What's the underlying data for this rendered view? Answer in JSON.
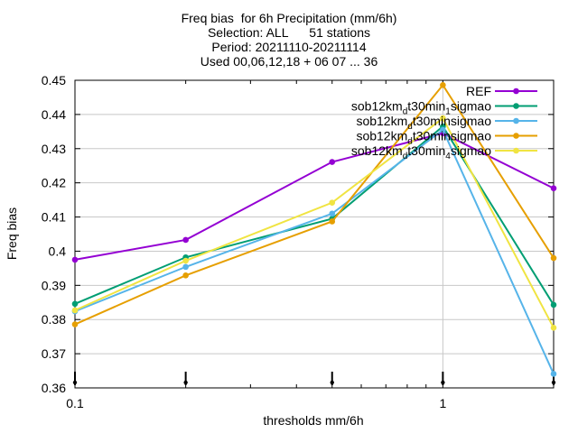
{
  "chart_data": {
    "type": "line",
    "title_lines": [
      "Freq bias  for 6h Precipitation (mm/6h)",
      "Selection: ALL      51 stations",
      "Period: 20211110-20211114",
      "Used 00,06,12,18 + 06 07 ... 36"
    ],
    "xlabel": "thresholds mm/6h",
    "ylabel": "Freq bias",
    "x_scale": "log",
    "xlim": [
      0.1,
      2
    ],
    "ylim": [
      0.36,
      0.45
    ],
    "x_ticks": [
      0.1,
      1
    ],
    "x_tick_labels": [
      "0.1",
      "1"
    ],
    "y_ticks": [
      0.36,
      0.37,
      0.38,
      0.39,
      0.4,
      0.41,
      0.42,
      0.43,
      0.44,
      0.45
    ],
    "y_tick_labels": [
      "0.36",
      "0.37",
      "0.38",
      "0.39",
      "0.4",
      "0.41",
      "0.42",
      "0.43",
      "0.44",
      "0.45"
    ],
    "x": [
      0.1,
      0.2,
      0.5,
      1.0,
      2.0
    ],
    "bottom_markers_x": [
      0.1,
      0.2,
      0.5,
      1.0,
      2.0
    ],
    "grid": true,
    "legend_position": "top-right",
    "series": [
      {
        "name": "REF",
        "label_base": "REF",
        "label_sub": "",
        "label_tail": "",
        "color": "#9400d3",
        "values": [
          0.3975,
          0.4033,
          0.4261,
          0.4345,
          0.4184
        ]
      },
      {
        "name": "sob12km_dt30min_1sigmao",
        "label_base": "sob12km",
        "label_sub": "d",
        "label_mid": "t30min",
        "label_sub2": "1",
        "label_tail": "sigmao",
        "color": "#009e73",
        "values": [
          0.3846,
          0.3982,
          0.4095,
          0.4365,
          0.3843
        ]
      },
      {
        "name": "sob12km_dt30min_sigmao",
        "label_base": "sob12km",
        "label_sub": "d",
        "label_mid": "t30min",
        "label_sub2": "",
        "label_tail": "sigmao",
        "color": "#56b4e9",
        "values": [
          0.3824,
          0.3954,
          0.411,
          0.4355,
          0.3641
        ]
      },
      {
        "name": "sob12km_dt30min_sigmao_b",
        "label_base": "sob12km",
        "label_sub": "d",
        "label_mid": "t30min",
        "label_sub2": "",
        "label_tail": "sigmao",
        "color": "#e69f00",
        "values": [
          0.3786,
          0.3929,
          0.4087,
          0.4486,
          0.398
        ]
      },
      {
        "name": "sob12km_dt30min_4sigmao",
        "label_base": "sob12km",
        "label_sub": "d",
        "label_mid": "t30min",
        "label_sub2": "4",
        "label_tail": "sigmao",
        "color": "#f0e442",
        "values": [
          0.3827,
          0.3972,
          0.4142,
          0.4389,
          0.3776
        ]
      }
    ]
  }
}
